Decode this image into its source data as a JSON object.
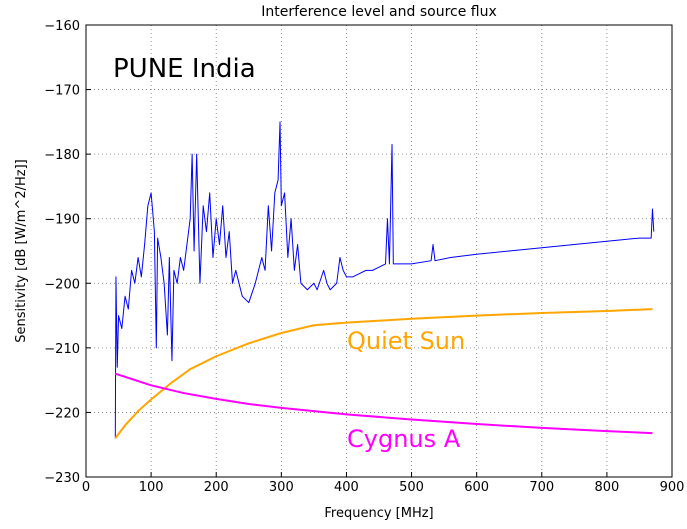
{
  "chart_data": {
    "type": "line",
    "title": "Interference level and source flux",
    "xlabel": "Frequency [MHz]",
    "ylabel": "Sensitivity [dB [W/m^2/Hz]]",
    "xlim": [
      0,
      900
    ],
    "ylim": [
      -230,
      -160
    ],
    "xticks": [
      0,
      100,
      200,
      300,
      400,
      500,
      600,
      700,
      800,
      900
    ],
    "yticks": [
      {
        "value": -230,
        "label": "−230"
      },
      {
        "value": -220,
        "label": "−220"
      },
      {
        "value": -210,
        "label": "−210"
      },
      {
        "value": -200,
        "label": "−200"
      },
      {
        "value": -190,
        "label": "−190"
      },
      {
        "value": -180,
        "label": "−180"
      },
      {
        "value": -170,
        "label": "−170"
      },
      {
        "value": -160,
        "label": "−160"
      }
    ],
    "grid": true,
    "annotations": [
      {
        "text": "PUNE India",
        "color": "#000000"
      },
      {
        "text": "Quiet Sun",
        "color": "#ffa500"
      },
      {
        "text": "Cygnus A",
        "color": "#ff00ff"
      }
    ],
    "series": [
      {
        "name": "Interference",
        "color": "#0000ff",
        "x": [
          45,
          46,
          48,
          50,
          55,
          60,
          65,
          70,
          75,
          80,
          85,
          90,
          95,
          100,
          105,
          108,
          110,
          115,
          120,
          125,
          128,
          132,
          135,
          140,
          145,
          150,
          155,
          160,
          163,
          166,
          170,
          175,
          180,
          185,
          190,
          195,
          200,
          205,
          210,
          215,
          220,
          225,
          230,
          240,
          250,
          260,
          270,
          275,
          280,
          285,
          290,
          295,
          298,
          300,
          305,
          310,
          315,
          320,
          325,
          330,
          340,
          350,
          355,
          365,
          370,
          375,
          385,
          390,
          395,
          400,
          410,
          420,
          430,
          440,
          450,
          460,
          463,
          466,
          470,
          472,
          480,
          500,
          530,
          533,
          536,
          560,
          600,
          650,
          700,
          750,
          800,
          850,
          868,
          870,
          872
        ],
        "values": [
          -224,
          -199,
          -213,
          -205,
          -207,
          -202,
          -204,
          -198,
          -200,
          -196,
          -199,
          -194,
          -188,
          -186,
          -192,
          -210,
          -193,
          -196,
          -200,
          -208,
          -196,
          -212,
          -198,
          -200,
          -196,
          -198,
          -194,
          -190,
          -180,
          -195,
          -180,
          -200,
          -188,
          -192,
          -186,
          -196,
          -190,
          -194,
          -188,
          -196,
          -192,
          -200,
          -198,
          -202,
          -203,
          -200,
          -196,
          -198,
          -188,
          -195,
          -186,
          -184,
          -175,
          -188,
          -186,
          -196,
          -190,
          -198,
          -194,
          -200,
          -201,
          -200,
          -201,
          -198,
          -200,
          -201,
          -200,
          -196,
          -198,
          -199,
          -199,
          -198.5,
          -198,
          -198,
          -197.5,
          -197,
          -190,
          -197,
          -178.5,
          -197,
          -197,
          -197,
          -196.5,
          -194,
          -196.5,
          -196,
          -195.5,
          -195,
          -194.5,
          -194,
          -193.5,
          -193,
          -193,
          -188.5,
          -192
        ]
      },
      {
        "name": "Quiet Sun",
        "color": "#ffa500",
        "x": [
          45,
          60,
          80,
          100,
          130,
          160,
          200,
          250,
          300,
          350,
          400,
          500,
          600,
          700,
          800,
          870
        ],
        "values": [
          -224,
          -222,
          -219.8,
          -218,
          -215.5,
          -213.3,
          -211.3,
          -209.3,
          -207.7,
          -206.5,
          -206.1,
          -205.5,
          -205,
          -204.6,
          -204.3,
          -204
        ]
      },
      {
        "name": "Cygnus A",
        "color": "#ff00ff",
        "x": [
          45,
          100,
          150,
          200,
          250,
          300,
          350,
          400,
          500,
          600,
          700,
          800,
          870
        ],
        "values": [
          -214,
          -215.8,
          -217,
          -217.9,
          -218.7,
          -219.3,
          -219.8,
          -220.3,
          -221.1,
          -221.8,
          -222.4,
          -222.9,
          -223.2
        ]
      }
    ]
  }
}
